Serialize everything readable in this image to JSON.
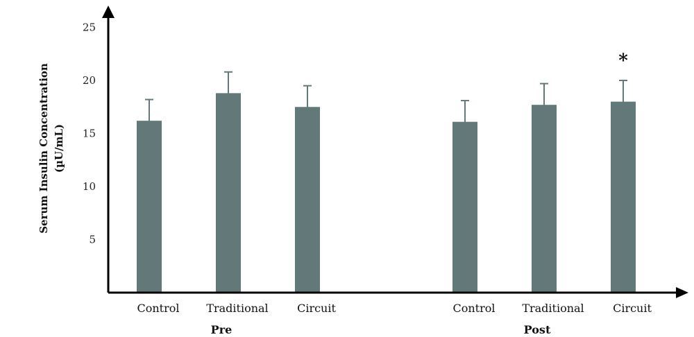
{
  "chart_data": {
    "type": "bar",
    "ylabel": "Serum Insulin Concentration",
    "ylabel_unit": "(µU/mL)",
    "ylim": [
      0,
      25
    ],
    "yticks": [
      5,
      10,
      15,
      20,
      25
    ],
    "grid": false,
    "groups": [
      {
        "label": "Pre",
        "categories": [
          "Control",
          "Traditional",
          "Circuit"
        ],
        "values": [
          16.2,
          18.8,
          17.5
        ],
        "errors": [
          2.0,
          2.0,
          2.0
        ]
      },
      {
        "label": "Post",
        "categories": [
          "Control",
          "Traditional",
          "Circuit"
        ],
        "values": [
          16.1,
          17.7,
          18.0
        ],
        "errors": [
          2.0,
          2.0,
          2.0
        ]
      }
    ],
    "annotations": [
      {
        "group": 1,
        "bar": 2,
        "text": "*"
      }
    ],
    "bar_color": "#637879",
    "axis_color": "#000000"
  }
}
